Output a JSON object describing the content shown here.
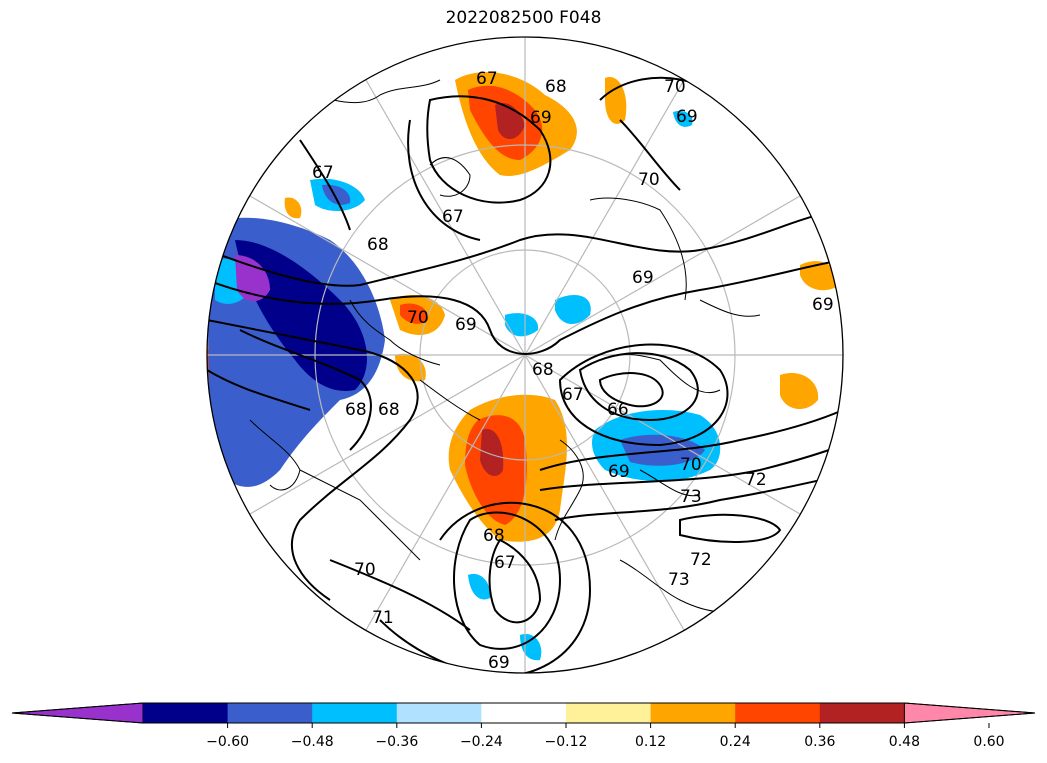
{
  "title": "2022082500 F048",
  "colorbar": {
    "colors": [
      "#9932cc",
      "#00008b",
      "#3a5fcd",
      "#00bfff",
      "#b0e2ff",
      "#ffffff",
      "#fff09a",
      "#ffa500",
      "#ff4500",
      "#b22222",
      "#ff88aa"
    ],
    "tick_labels": [
      "−0.60",
      "−0.48",
      "−0.36",
      "−0.24",
      "−0.12",
      "0.12",
      "0.24",
      "0.36",
      "0.48",
      "0.60"
    ]
  },
  "contour_labels": [
    "67",
    "68",
    "69",
    "70",
    "71",
    "72",
    "73",
    "66"
  ],
  "shading": {
    "neg_strong": "#00008b",
    "neg_mid": "#3a5fcd",
    "neg_light": "#00bfff",
    "neg_extreme": "#9932cc",
    "pos_light": "#ffa500",
    "pos_mid": "#ff4500",
    "pos_strong": "#b22222",
    "pos_extreme": "#ff88aa"
  }
}
